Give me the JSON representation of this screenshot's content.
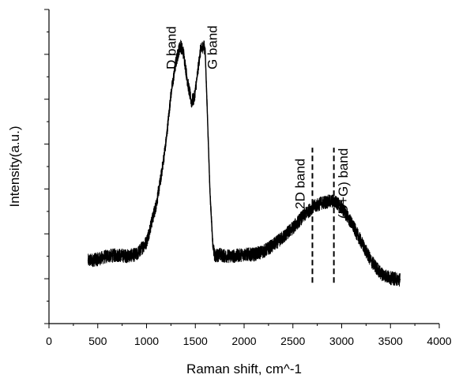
{
  "chart_data": {
    "type": "line",
    "title": "",
    "xlabel": "Raman shift, cm^-1",
    "ylabel": "Intensity(a.u.)",
    "xlim": [
      0,
      4000
    ],
    "x_ticks": [
      0,
      500,
      1000,
      1500,
      2000,
      2500,
      3000,
      3500,
      4000
    ],
    "ylim": [
      0,
      1
    ],
    "y_tick_labels": "none",
    "grid": false,
    "legend": "none",
    "series": [
      {
        "x": [
          400,
          500,
          600,
          700,
          800,
          900,
          1000,
          1100,
          1150,
          1200,
          1250,
          1300,
          1330,
          1350,
          1380,
          1420,
          1460,
          1490,
          1520,
          1550,
          1580,
          1600,
          1620,
          1650,
          1680,
          1700,
          1750,
          1800,
          1900,
          2000,
          2100,
          2200,
          2300,
          2400,
          2500,
          2600,
          2700,
          2800,
          2900,
          2950,
          3000,
          3100,
          3200,
          3300,
          3400,
          3500,
          3600
        ],
        "y": [
          0.2,
          0.205,
          0.215,
          0.218,
          0.215,
          0.22,
          0.26,
          0.38,
          0.47,
          0.58,
          0.73,
          0.83,
          0.87,
          0.885,
          0.86,
          0.77,
          0.705,
          0.72,
          0.79,
          0.865,
          0.885,
          0.875,
          0.7,
          0.42,
          0.245,
          0.215,
          0.22,
          0.215,
          0.215,
          0.22,
          0.22,
          0.23,
          0.25,
          0.275,
          0.305,
          0.34,
          0.37,
          0.385,
          0.39,
          0.385,
          0.37,
          0.32,
          0.26,
          0.2,
          0.16,
          0.145,
          0.14
        ]
      }
    ],
    "annotations": [
      {
        "text": "D band",
        "x": 1300
      },
      {
        "text": "G band",
        "x": 1720
      },
      {
        "text": "2D band",
        "x": 2620
      },
      {
        "text": "(D+G) band",
        "x": 3060
      }
    ],
    "reference_lines": [
      {
        "x": 2700,
        "y_from": 0.13,
        "y_to": 0.56,
        "style": "dashed"
      },
      {
        "x": 2920,
        "y_from": 0.13,
        "y_to": 0.56,
        "style": "dashed"
      }
    ]
  }
}
